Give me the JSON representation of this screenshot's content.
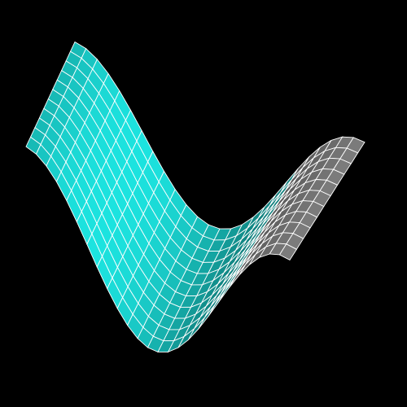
{
  "scene": {
    "background_color": "#000000",
    "surface": {
      "shape": "sine-wave-sheet",
      "grid_lines": "on",
      "grid_line_color": "#ffffff",
      "front_face_color": "#1ce3df",
      "back_face_color": "#9c9c9c"
    }
  }
}
